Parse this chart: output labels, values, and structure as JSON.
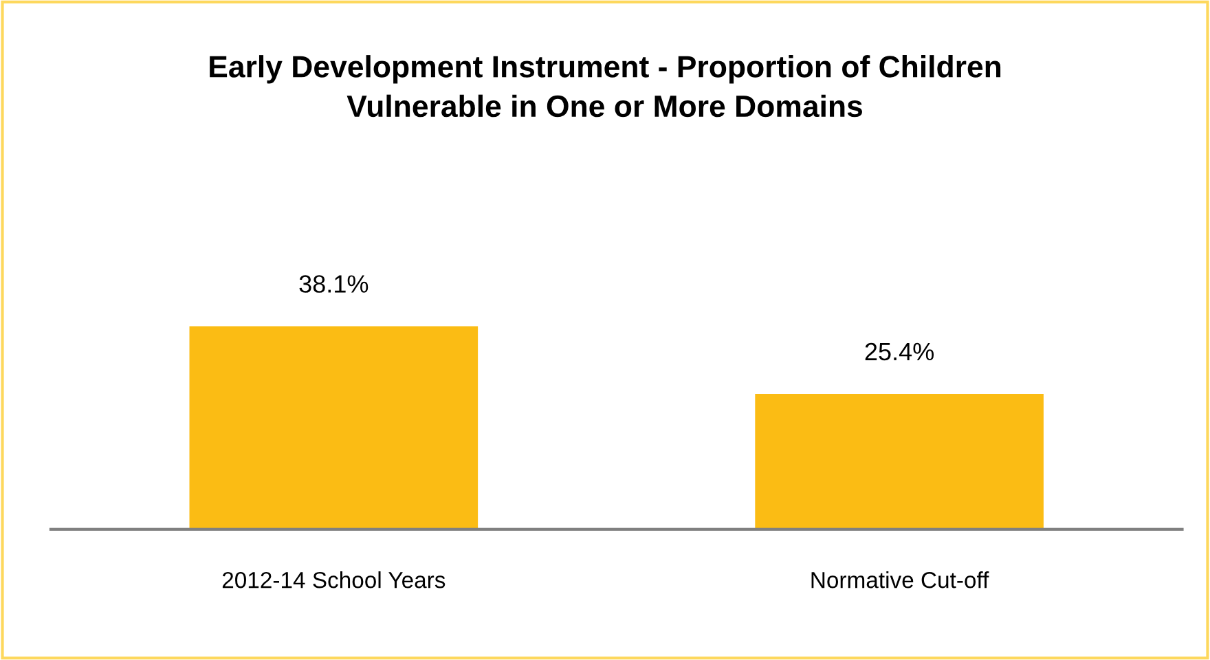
{
  "chart_data": {
    "type": "bar",
    "title": "Early Development Instrument - Proportion of Children\nVulnerable in One or More Domains",
    "categories": [
      "2012-14 School Years",
      "Normative Cut-off"
    ],
    "values": [
      38.1,
      25.4
    ],
    "color": "#fbbc14",
    "value_labels": [
      "38.1%",
      "25.4%"
    ],
    "grid": false,
    "legend": false
  }
}
